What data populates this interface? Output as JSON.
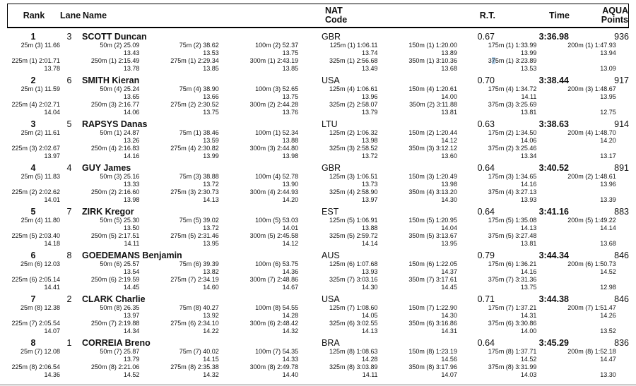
{
  "table": {
    "header": {
      "rank": "Rank",
      "lane": "Lane",
      "name": "Name",
      "nat": "NAT\nCode",
      "rt": "R.T.",
      "time": "Time",
      "points": "AQUA\nPoints"
    }
  },
  "selection_highlight": {
    "path": "swimmers.0.splits.row2.6",
    "char_index": 1,
    "color": "#b5d3ec"
  },
  "swimmers": [
    {
      "rank": "1",
      "lane": "3",
      "name": "SCOTT Duncan",
      "nat": "GBR",
      "rt": "0.67",
      "time": "3:36.98",
      "points": "936",
      "splits": {
        "row1": [
          "25m (3) 11.66",
          "50m (2) 25.09",
          "75m (2) 38.62",
          "100m (2) 52.37",
          "125m (1) 1:06.11",
          "150m (1) 1:20.00",
          "175m (1) 1:33.99",
          "200m (1) 1:47.93"
        ],
        "row1_diffs": [
          "",
          "13.43",
          "13.53",
          "13.75",
          "13.74",
          "13.89",
          "13.99",
          "13.94"
        ],
        "row2": [
          "225m (1) 2:01.71",
          "250m (1) 2:15.49",
          "275m (1) 2:29.34",
          "300m (1) 2:43.19",
          "325m (1) 2:56.68",
          "350m (1) 3:10.36",
          "375m (1) 3:23.89",
          ""
        ],
        "row2_diffs": [
          "13.78",
          "13.78",
          "13.85",
          "13.85",
          "13.49",
          "13.68",
          "13.53",
          "13.09"
        ]
      }
    },
    {
      "rank": "2",
      "lane": "6",
      "name": "SMITH Kieran",
      "nat": "USA",
      "rt": "0.70",
      "time": "3:38.44",
      "points": "917",
      "splits": {
        "row1": [
          "25m (1) 11.59",
          "50m (4) 25.24",
          "75m (4) 38.90",
          "100m (3) 52.65",
          "125m (4) 1:06.61",
          "150m (4) 1:20.61",
          "175m (4) 1:34.72",
          "200m (3) 1:48.67"
        ],
        "row1_diffs": [
          "",
          "13.65",
          "13.66",
          "13.75",
          "13.96",
          "14.00",
          "14.11",
          "13.95"
        ],
        "row2": [
          "225m (4) 2:02.71",
          "250m (3) 2:16.77",
          "275m (2) 2:30.52",
          "300m (2) 2:44.28",
          "325m (2) 2:58.07",
          "350m (2) 3:11.88",
          "375m (3) 3:25.69",
          ""
        ],
        "row2_diffs": [
          "14.04",
          "14.06",
          "13.75",
          "13.76",
          "13.79",
          "13.81",
          "13.81",
          "12.75"
        ]
      }
    },
    {
      "rank": "3",
      "lane": "5",
      "name": "RAPSYS Danas",
      "nat": "LTU",
      "rt": "0.63",
      "time": "3:38.63",
      "points": "914",
      "splits": {
        "row1": [
          "25m (2) 11.61",
          "50m (1) 24.87",
          "75m (1) 38.46",
          "100m (1) 52.34",
          "125m (2) 1:06.32",
          "150m (2) 1:20.44",
          "175m (2) 1:34.50",
          "200m (4) 1:48.70"
        ],
        "row1_diffs": [
          "",
          "13.26",
          "13.59",
          "13.88",
          "13.98",
          "14.12",
          "14.06",
          "14.20"
        ],
        "row2": [
          "225m (3) 2:02.67",
          "250m (4) 2:16.83",
          "275m (4) 2:30.82",
          "300m (3) 2:44.80",
          "325m (3) 2:58.52",
          "350m (3) 3:12.12",
          "375m (2) 3:25.46",
          ""
        ],
        "row2_diffs": [
          "13.97",
          "14.16",
          "13.99",
          "13.98",
          "13.72",
          "13.60",
          "13.34",
          "13.17"
        ]
      }
    },
    {
      "rank": "4",
      "lane": "4",
      "name": "GUY James",
      "nat": "GBR",
      "rt": "0.64",
      "time": "3:40.52",
      "points": "891",
      "splits": {
        "row1": [
          "25m (5) 11.83",
          "50m (3) 25.16",
          "75m (3) 38.88",
          "100m (4) 52.78",
          "125m (3) 1:06.51",
          "150m (3) 1:20.49",
          "175m (3) 1:34.65",
          "200m (2) 1:48.61"
        ],
        "row1_diffs": [
          "",
          "13.33",
          "13.72",
          "13.90",
          "13.73",
          "13.98",
          "14.16",
          "13.96"
        ],
        "row2": [
          "225m (2) 2:02.62",
          "250m (2) 2:16.60",
          "275m (3) 2:30.73",
          "300m (4) 2:44.93",
          "325m (4) 2:58.90",
          "350m (4) 3:13.20",
          "375m (4) 3:27.13",
          ""
        ],
        "row2_diffs": [
          "14.01",
          "13.98",
          "14.13",
          "14.20",
          "13.97",
          "14.30",
          "13.93",
          "13.39"
        ]
      }
    },
    {
      "rank": "5",
      "lane": "7",
      "name": "ZIRK Kregor",
      "nat": "EST",
      "rt": "0.64",
      "time": "3:41.16",
      "points": "883",
      "splits": {
        "row1": [
          "25m (4) 11.80",
          "50m (5) 25.30",
          "75m (5) 39.02",
          "100m (5) 53.03",
          "125m (5) 1:06.91",
          "150m (5) 1:20.95",
          "175m (5) 1:35.08",
          "200m (5) 1:49.22"
        ],
        "row1_diffs": [
          "",
          "13.50",
          "13.72",
          "14.01",
          "13.88",
          "14.04",
          "14.13",
          "14.14"
        ],
        "row2": [
          "225m (5) 2:03.40",
          "250m (5) 2:17.51",
          "275m (5) 2:31.46",
          "300m (5) 2:45.58",
          "325m (5) 2:59.72",
          "350m (5) 3:13.67",
          "375m (5) 3:27.48",
          ""
        ],
        "row2_diffs": [
          "14.18",
          "14.11",
          "13.95",
          "14.12",
          "14.14",
          "13.95",
          "13.81",
          "13.68"
        ]
      }
    },
    {
      "rank": "6",
      "lane": "8",
      "name": "GOEDEMANS Benjamin",
      "nat": "AUS",
      "rt": "0.79",
      "time": "3:44.34",
      "points": "846",
      "splits": {
        "row1": [
          "25m (6) 12.03",
          "50m (6) 25.57",
          "75m (6) 39.39",
          "100m (6) 53.75",
          "125m (6) 1:07.68",
          "150m (6) 1:22.05",
          "175m (6) 1:36.21",
          "200m (6) 1:50.73"
        ],
        "row1_diffs": [
          "",
          "13.54",
          "13.82",
          "14.36",
          "13.93",
          "14.37",
          "14.16",
          "14.52"
        ],
        "row2": [
          "225m (6) 2:05.14",
          "250m (6) 2:19.59",
          "275m (7) 2:34.19",
          "300m (7) 2:48.86",
          "325m (7) 3:03.16",
          "350m (7) 3:17.61",
          "375m (7) 3:31.36",
          ""
        ],
        "row2_diffs": [
          "14.41",
          "14.45",
          "14.60",
          "14.67",
          "14.30",
          "14.45",
          "13.75",
          "12.98"
        ]
      }
    },
    {
      "rank": "7",
      "lane": "2",
      "name": "CLARK Charlie",
      "nat": "USA",
      "rt": "0.71",
      "time": "3:44.38",
      "points": "846",
      "splits": {
        "row1": [
          "25m (8) 12.38",
          "50m (8) 26.35",
          "75m (8) 40.27",
          "100m (8) 54.55",
          "125m (7) 1:08.60",
          "150m (7) 1:22.90",
          "175m (7) 1:37.21",
          "200m (7) 1:51.47"
        ],
        "row1_diffs": [
          "",
          "13.97",
          "13.92",
          "14.28",
          "14.05",
          "14.30",
          "14.31",
          "14.26"
        ],
        "row2": [
          "225m (7) 2:05.54",
          "250m (7) 2:19.88",
          "275m (6) 2:34.10",
          "300m (6) 2:48.42",
          "325m (6) 3:02.55",
          "350m (6) 3:16.86",
          "375m (6) 3:30.86",
          ""
        ],
        "row2_diffs": [
          "14.07",
          "14.34",
          "14.22",
          "14.32",
          "14.13",
          "14.31",
          "14.00",
          "13.52"
        ]
      }
    },
    {
      "rank": "8",
      "lane": "1",
      "name": "CORREIA Breno",
      "nat": "BRA",
      "rt": "0.64",
      "time": "3:45.29",
      "points": "836",
      "splits": {
        "row1": [
          "25m (7) 12.08",
          "50m (7) 25.87",
          "75m (7) 40.02",
          "100m (7) 54.35",
          "125m (8) 1:08.63",
          "150m (8) 1:23.19",
          "175m (8) 1:37.71",
          "200m (8) 1:52.18"
        ],
        "row1_diffs": [
          "",
          "13.79",
          "14.15",
          "14.33",
          "14.28",
          "14.56",
          "14.52",
          "14.47"
        ],
        "row2": [
          "225m (8) 2:06.54",
          "250m (8) 2:21.06",
          "275m (8) 2:35.38",
          "300m (8) 2:49.78",
          "325m (8) 3:03.89",
          "350m (8) 3:17.96",
          "375m (8) 3:31.99",
          ""
        ],
        "row2_diffs": [
          "14.36",
          "14.52",
          "14.32",
          "14.40",
          "14.11",
          "14.07",
          "14.03",
          "13.30"
        ]
      }
    }
  ]
}
